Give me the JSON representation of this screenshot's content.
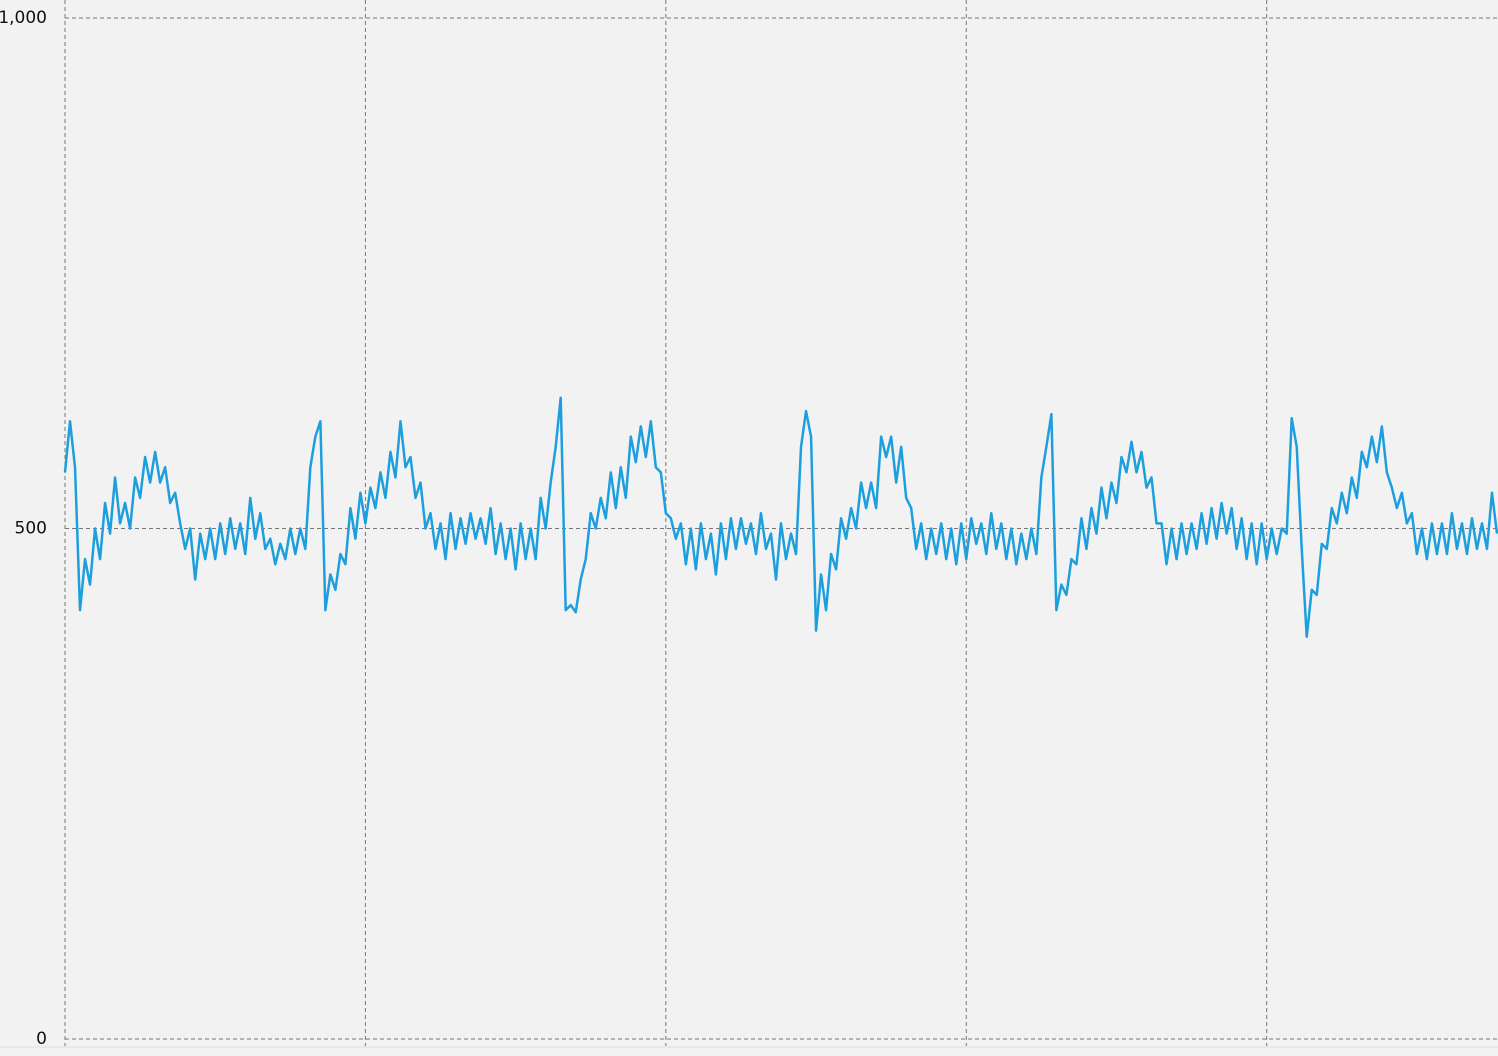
{
  "chart_data": {
    "type": "line",
    "color": "#1e9fdd",
    "grid": true,
    "xlim": [
      0,
      286
    ],
    "xticks": [
      0,
      60,
      120,
      180,
      240
    ],
    "ylim": [
      0,
      1000
    ],
    "yticks": [
      0,
      500,
      {
        "value": 1000,
        "label": "1,000"
      }
    ],
    "values": [
      555,
      605,
      560,
      420,
      470,
      445,
      500,
      470,
      525,
      495,
      550,
      505,
      525,
      500,
      550,
      530,
      570,
      545,
      575,
      545,
      560,
      525,
      535,
      505,
      480,
      500,
      450,
      495,
      470,
      500,
      470,
      505,
      475,
      510,
      480,
      505,
      475,
      530,
      490,
      515,
      480,
      490,
      465,
      485,
      470,
      500,
      475,
      500,
      480,
      560,
      590,
      605,
      420,
      455,
      440,
      475,
      465,
      520,
      490,
      535,
      505,
      540,
      520,
      555,
      530,
      575,
      550,
      605,
      560,
      570,
      530,
      545,
      500,
      515,
      480,
      505,
      470,
      515,
      480,
      510,
      485,
      515,
      490,
      510,
      485,
      520,
      475,
      505,
      470,
      500,
      460,
      505,
      470,
      500,
      470,
      530,
      500,
      545,
      580,
      628,
      420,
      425,
      418,
      450,
      470,
      515,
      500,
      530,
      510,
      555,
      520,
      560,
      530,
      590,
      565,
      600,
      570,
      605,
      560,
      555,
      515,
      510,
      490,
      505,
      465,
      500,
      460,
      505,
      470,
      495,
      455,
      505,
      470,
      510,
      480,
      510,
      485,
      505,
      475,
      515,
      480,
      495,
      450,
      505,
      470,
      495,
      475,
      580,
      615,
      590,
      400,
      455,
      420,
      475,
      460,
      510,
      490,
      520,
      500,
      545,
      520,
      545,
      520,
      590,
      570,
      590,
      545,
      580,
      530,
      520,
      480,
      505,
      470,
      500,
      475,
      505,
      470,
      500,
      465,
      505,
      470,
      510,
      485,
      505,
      475,
      515,
      480,
      505,
      470,
      500,
      465,
      495,
      470,
      500,
      475,
      550,
      580,
      612,
      420,
      445,
      435,
      470,
      465,
      510,
      480,
      520,
      495,
      540,
      510,
      545,
      525,
      570,
      555,
      585,
      555,
      575,
      540,
      550,
      505,
      505,
      465,
      500,
      470,
      505,
      475,
      505,
      480,
      515,
      485,
      520,
      490,
      525,
      495,
      520,
      480,
      510,
      470,
      505,
      465,
      505,
      470,
      500,
      475,
      500,
      495,
      608,
      580,
      480,
      394,
      440,
      435,
      485,
      480,
      520,
      505,
      535,
      515,
      550,
      530,
      575,
      560,
      590,
      565,
      600,
      555,
      540,
      520,
      535,
      505,
      515,
      475,
      500,
      470,
      505,
      475,
      505,
      475,
      515,
      480,
      505,
      475,
      510,
      480,
      505,
      480,
      535,
      495
    ]
  }
}
